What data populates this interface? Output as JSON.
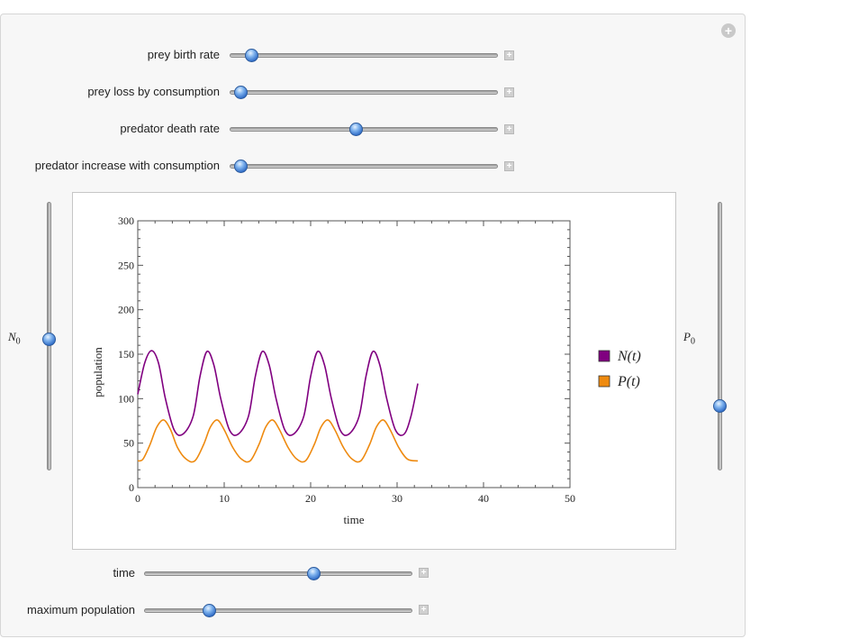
{
  "controls": {
    "sliders": [
      {
        "label": "prey birth rate",
        "value": 0.08
      },
      {
        "label": "prey loss by consumption",
        "value": 0.04
      },
      {
        "label": "predator death rate",
        "value": 0.47
      },
      {
        "label": "predator increase with consumption",
        "value": 0.04
      }
    ],
    "bottom_sliders": [
      {
        "label": "time",
        "value": 0.63
      },
      {
        "label": "maximum population",
        "value": 0.24
      }
    ],
    "N0": {
      "label": "N",
      "sub": "0",
      "value": 0.49
    },
    "P0": {
      "label": "P",
      "sub": "0",
      "value": 0.24
    }
  },
  "chart_data": {
    "type": "line",
    "xlabel": "time",
    "ylabel": "population",
    "xlim": [
      0,
      50
    ],
    "ylim": [
      0,
      300
    ],
    "xticks": [
      0,
      10,
      20,
      30,
      40,
      50
    ],
    "yticks": [
      0,
      50,
      100,
      150,
      200,
      250,
      300
    ],
    "legend_position": "right",
    "series": [
      {
        "name": "N(t)",
        "color": "#800080",
        "x": [
          0,
          0.8,
          1.6,
          2.4,
          3.2,
          4.2,
          5.2,
          6.4,
          7.2,
          8.0,
          8.8,
          9.6,
          10.6,
          11.6,
          12.8,
          13.6,
          14.4,
          15.2,
          16.0,
          17.0,
          18.0,
          19.2,
          20.0,
          20.8,
          21.6,
          22.4,
          23.4,
          24.4,
          25.6,
          26.4,
          27.2,
          28.0,
          28.8,
          29.8,
          30.8,
          31.6,
          32.4
        ],
        "y": [
          105,
          140,
          154,
          140,
          100,
          65,
          60,
          80,
          125,
          153,
          138,
          100,
          65,
          60,
          80,
          125,
          153,
          138,
          100,
          65,
          60,
          80,
          125,
          153,
          138,
          100,
          65,
          60,
          80,
          125,
          153,
          138,
          100,
          65,
          60,
          80,
          117
        ]
      },
      {
        "name": "P(t)",
        "color": "#ee8a10",
        "x": [
          0,
          0.6,
          1.4,
          2.2,
          3.0,
          3.8,
          4.6,
          5.6,
          6.6,
          7.6,
          8.4,
          9.2,
          10.0,
          11.0,
          12.0,
          13.0,
          14.0,
          14.8,
          15.6,
          16.4,
          17.4,
          18.4,
          19.4,
          20.4,
          21.2,
          22.0,
          22.8,
          23.8,
          24.8,
          25.8,
          26.8,
          27.6,
          28.4,
          29.2,
          30.2,
          31.2,
          32.4
        ],
        "y": [
          30,
          32,
          48,
          68,
          76,
          65,
          45,
          32,
          30,
          48,
          68,
          76,
          65,
          45,
          32,
          30,
          48,
          68,
          76,
          65,
          45,
          32,
          30,
          48,
          68,
          76,
          65,
          45,
          32,
          30,
          48,
          68,
          76,
          65,
          45,
          32,
          30
        ]
      }
    ]
  }
}
